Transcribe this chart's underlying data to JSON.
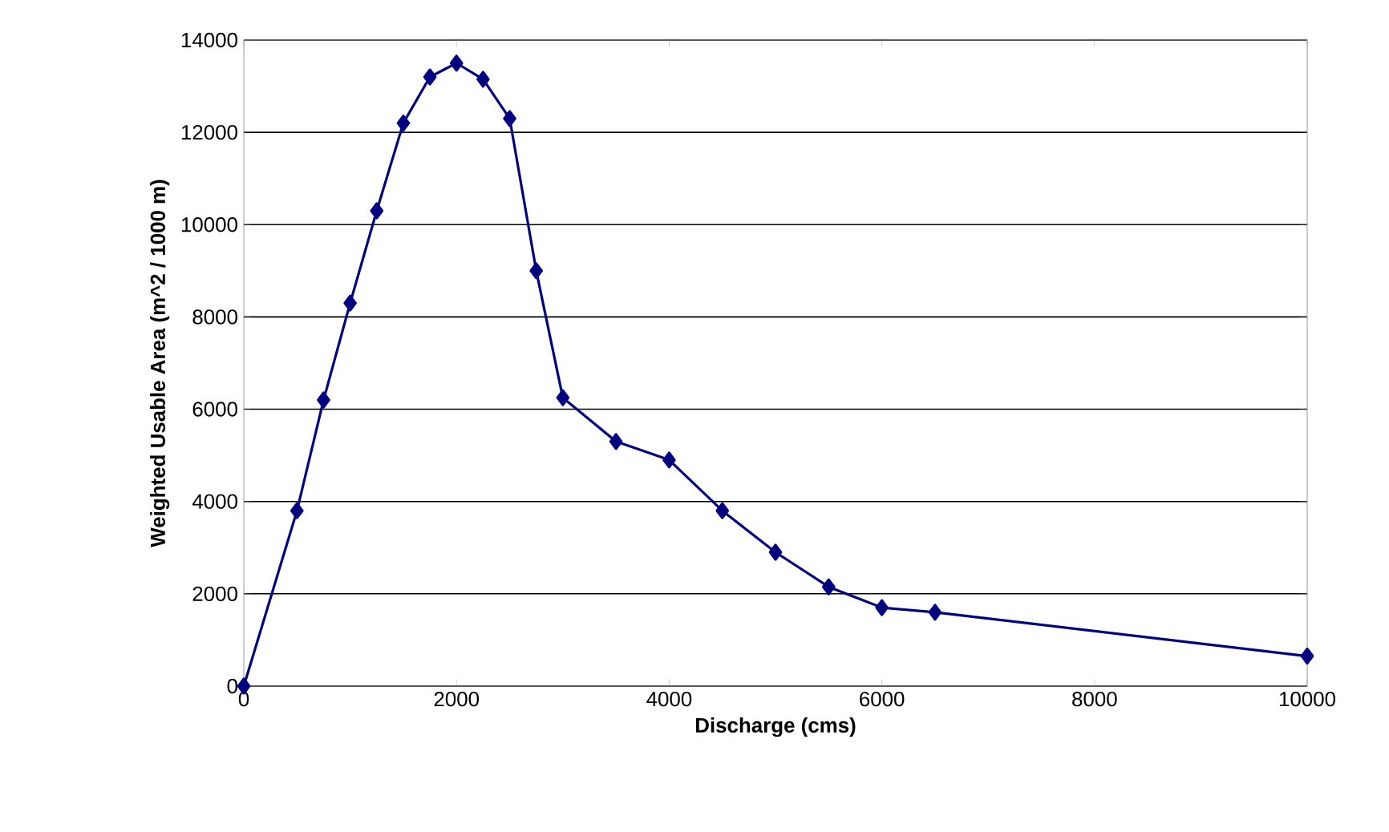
{
  "chart_data": {
    "type": "line",
    "xlabel": "Discharge (cms)",
    "ylabel": "Weighted Usable Area (m^2 / 1000 m)",
    "x": [
      0,
      500,
      750,
      1000,
      1250,
      1500,
      1750,
      2000,
      2250,
      2500,
      2750,
      3000,
      3500,
      4000,
      4500,
      5000,
      5500,
      6000,
      6500,
      10000
    ],
    "series": [
      {
        "color": "#000080",
        "values": [
          0,
          3800,
          6200,
          8300,
          10300,
          12200,
          13200,
          13500,
          13150,
          12300,
          9000,
          6250,
          5300,
          4900,
          3800,
          2900,
          2150,
          1700,
          1600,
          650
        ]
      }
    ],
    "xlim": [
      0,
      10000
    ],
    "xticks": [
      0,
      2000,
      4000,
      6000,
      8000,
      10000
    ],
    "ylim": [
      0,
      14000
    ],
    "yticks": [
      0,
      2000,
      4000,
      6000,
      8000,
      10000,
      12000,
      14000
    ],
    "grid": "y",
    "marker": "diamond",
    "line_style": "solid"
  }
}
